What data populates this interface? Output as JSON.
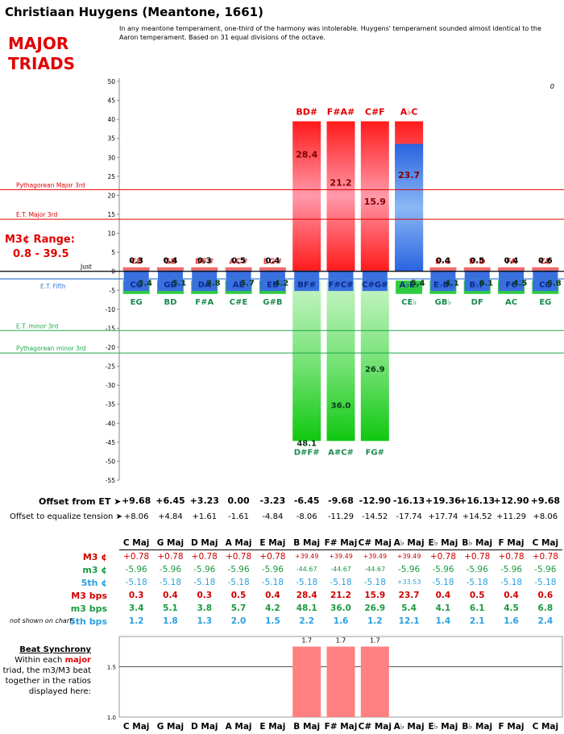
{
  "title": "Christiaan Huygens (Meantone, 1661)",
  "heading_major": "MAJOR",
  "heading_triads": "TRIADS",
  "description": "In any meantone temperament, one-third of the harmony was intolerable. Huygens' temperament sounded almost identical to the Aaron temperament. Based on 31 equal divisions of the octave.",
  "m3_range_label": "M3¢ Range:",
  "m3_range_value": "0.8 - 39.5",
  "corner_value": "0",
  "ref_lines": {
    "pyth_major": {
      "label": "Pythagorean Major 3rd",
      "value": 21.5,
      "color": "#e00000"
    },
    "et_major": {
      "label": "E.T. Major 3rd",
      "value": 13.7,
      "color": "#e00000"
    },
    "just": {
      "label": "Just",
      "value": 0,
      "color": "#000000"
    },
    "et_fifth": {
      "label": "E.T. Fifth",
      "value": -2,
      "color": "#3a7bd5"
    },
    "et_minor": {
      "label": "E.T. minor 3rd",
      "value": -15.6,
      "color": "#1fa84a"
    },
    "pyth_minor": {
      "label": "Pythagorean minor 3rd",
      "value": -21.5,
      "color": "#1fa84a"
    }
  },
  "chart_data": {
    "type": "bar",
    "ylim": [
      -55,
      50
    ],
    "yticks": [
      50,
      45,
      40,
      35,
      30,
      25,
      20,
      15,
      10,
      5,
      0,
      -5,
      -10,
      -15,
      -20,
      -25,
      -30,
      -35,
      -40,
      -45,
      -50,
      -55
    ],
    "columns": [
      {
        "key": "C Maj",
        "top_label": "CE",
        "m3_pair": "CG",
        "bottom_label": "EG",
        "M3": 0.78,
        "fifth": -5.18,
        "m3": -5.96,
        "M3_bps": "0.3",
        "m3_bps": "3.4"
      },
      {
        "key": "G Maj",
        "top_label": "GB",
        "m3_pair": "GD",
        "bottom_label": "BD",
        "M3": 0.78,
        "fifth": -5.18,
        "m3": -5.96,
        "M3_bps": "0.4",
        "m3_bps": "5.1"
      },
      {
        "key": "D Maj",
        "top_label": "DF#",
        "m3_pair": "DA",
        "bottom_label": "F#A",
        "M3": 0.78,
        "fifth": -5.18,
        "m3": -5.96,
        "M3_bps": "0.3",
        "m3_bps": "3.8"
      },
      {
        "key": "A Maj",
        "top_label": "AC#",
        "m3_pair": "AE",
        "bottom_label": "C#E",
        "M3": 0.78,
        "fifth": -5.18,
        "m3": -5.96,
        "M3_bps": "0.5",
        "m3_bps": "5.7"
      },
      {
        "key": "E Maj",
        "top_label": "EG#",
        "m3_pair": "EB",
        "bottom_label": "G#B",
        "M3": 0.78,
        "fifth": -5.18,
        "m3": -5.96,
        "M3_bps": "0.4",
        "m3_bps": "4.2"
      },
      {
        "key": "B Maj",
        "top_label": "BD#",
        "m3_pair": "BF#",
        "bottom_label": "D#F#",
        "M3": 39.49,
        "fifth": -5.18,
        "m3": -44.67,
        "M3_bps": "28.4",
        "m3_bps": "48.1"
      },
      {
        "key": "F# Maj",
        "top_label": "F#A#",
        "m3_pair": "F#C#",
        "bottom_label": "A#C#",
        "M3": 39.49,
        "fifth": -5.18,
        "m3": -44.67,
        "M3_bps": "21.2",
        "m3_bps": "36.0"
      },
      {
        "key": "C# Maj",
        "top_label": "C#F",
        "m3_pair": "C#G#",
        "bottom_label": "FG#",
        "M3": 39.49,
        "fifth": -5.18,
        "m3": -44.67,
        "M3_bps": "15.9",
        "m3_bps": "26.9"
      },
      {
        "key": "A♭ Maj",
        "top_label": "A♭C",
        "m3_pair": "A♭E♭",
        "bottom_label": "CE♭",
        "M3": 39.49,
        "fifth": 33.53,
        "m3": -5.96,
        "M3_bps": "23.7",
        "m3_bps": "5.4"
      },
      {
        "key": "E♭ Maj",
        "top_label": "E♭G",
        "m3_pair": "E♭B♭",
        "bottom_label": "GB♭",
        "M3": 0.78,
        "fifth": -5.18,
        "m3": -5.96,
        "M3_bps": "0.4",
        "m3_bps": "4.1"
      },
      {
        "key": "B♭ Maj",
        "top_label": "B♭D",
        "m3_pair": "B♭F",
        "bottom_label": "DF",
        "M3": 0.78,
        "fifth": -5.18,
        "m3": -5.96,
        "M3_bps": "0.5",
        "m3_bps": "6.1"
      },
      {
        "key": "F Maj",
        "top_label": "FA",
        "m3_pair": "FC",
        "bottom_label": "AC",
        "M3": 0.78,
        "fifth": -5.18,
        "m3": -5.96,
        "M3_bps": "0.4",
        "m3_bps": "4.5"
      },
      {
        "key": "C Maj",
        "top_label": "CE",
        "m3_pair": "CG",
        "bottom_label": "EG",
        "M3": 0.78,
        "fifth": -5.18,
        "m3": -5.96,
        "M3_bps": "0.6",
        "m3_bps": "6.8"
      }
    ]
  },
  "offsets": {
    "label_offset": "Offset from ET ➤",
    "label_equalize": "Offset to equalize tension ➤",
    "offset_values": [
      "+9.68",
      "+6.45",
      "+3.23",
      "0.00",
      "-3.23",
      "-6.45",
      "-9.68",
      "-12.90",
      "-16.13",
      "+19.36",
      "+16.13",
      "+12.90",
      "+9.68"
    ],
    "equalize_values": [
      "+8.06",
      "+4.84",
      "+1.61",
      "-1.61",
      "-4.84",
      "-8.06",
      "-11.29",
      "-14.52",
      "-17.74",
      "+17.74",
      "+14.52",
      "+11.29",
      "+8.06"
    ]
  },
  "table": {
    "headers": [
      "C Maj",
      "G Maj",
      "D Maj",
      "A Maj",
      "E Maj",
      "B Maj",
      "F# Maj",
      "C# Maj",
      "A♭ Maj",
      "E♭ Maj",
      "B♭ Maj",
      "F Maj",
      "C Maj"
    ],
    "rows": [
      {
        "label": "M3 ¢",
        "color": "#d00000",
        "bold": false,
        "values": [
          "+0.78",
          "+0.78",
          "+0.78",
          "+0.78",
          "+0.78",
          "+39.49",
          "+39.49",
          "+39.49",
          "+39.49",
          "+0.78",
          "+0.78",
          "+0.78",
          "+0.78"
        ]
      },
      {
        "label": "m3 ¢",
        "color": "#1a9a40",
        "bold": false,
        "values": [
          "-5.96",
          "-5.96",
          "-5.96",
          "-5.96",
          "-5.96",
          "-44.67",
          "-44.67",
          "-44.67",
          "-5.96",
          "-5.96",
          "-5.96",
          "-5.96",
          "-5.96"
        ]
      },
      {
        "label": "5th ¢",
        "color": "#2aa0e0",
        "bold": false,
        "values": [
          "-5.18",
          "-5.18",
          "-5.18",
          "-5.18",
          "-5.18",
          "-5.18",
          "-5.18",
          "-5.18",
          "+33.53",
          "-5.18",
          "-5.18",
          "-5.18",
          "-5.18"
        ]
      },
      {
        "label": "M3 bps",
        "color": "#d00000",
        "bold": true,
        "values": [
          "0.3",
          "0.4",
          "0.3",
          "0.5",
          "0.4",
          "28.4",
          "21.2",
          "15.9",
          "23.7",
          "0.4",
          "0.5",
          "0.4",
          "0.6"
        ]
      },
      {
        "label": "m3 bps",
        "color": "#1a9a40",
        "bold": true,
        "values": [
          "3.4",
          "5.1",
          "3.8",
          "5.7",
          "4.2",
          "48.1",
          "36.0",
          "26.9",
          "5.4",
          "4.1",
          "6.1",
          "4.5",
          "6.8"
        ]
      },
      {
        "label": "5th bps",
        "color": "#2aa0e0",
        "bold": true,
        "values": [
          "1.2",
          "1.8",
          "1.3",
          "2.0",
          "1.5",
          "2.2",
          "1.6",
          "1.2",
          "12.1",
          "1.4",
          "2.1",
          "1.6",
          "2.4"
        ]
      }
    ],
    "note": "not shown on chart:"
  },
  "beat": {
    "title": "Beat Synchrony",
    "text_before": "Within each",
    "text_major": "major",
    "text_after": "triad, the m3/M3 beat together in the ratios displayed here:",
    "yticks": [
      "1.5",
      "1.0"
    ],
    "values": [
      null,
      null,
      null,
      null,
      null,
      1.7,
      1.7,
      1.7,
      null,
      null,
      null,
      null,
      null
    ],
    "value_labels": [
      "",
      "",
      "",
      "",
      "",
      "1.7",
      "1.7",
      "1.7",
      "",
      "",
      "",
      "",
      ""
    ],
    "ylim": [
      1.0,
      1.8
    ],
    "xlabels": [
      "C Maj",
      "G Maj",
      "D Maj",
      "A Maj",
      "E Maj",
      "B Maj",
      "F# Maj",
      "C# Maj",
      "A♭ Maj",
      "E♭ Maj",
      "B♭ Maj",
      "F Maj",
      "C Maj"
    ]
  }
}
